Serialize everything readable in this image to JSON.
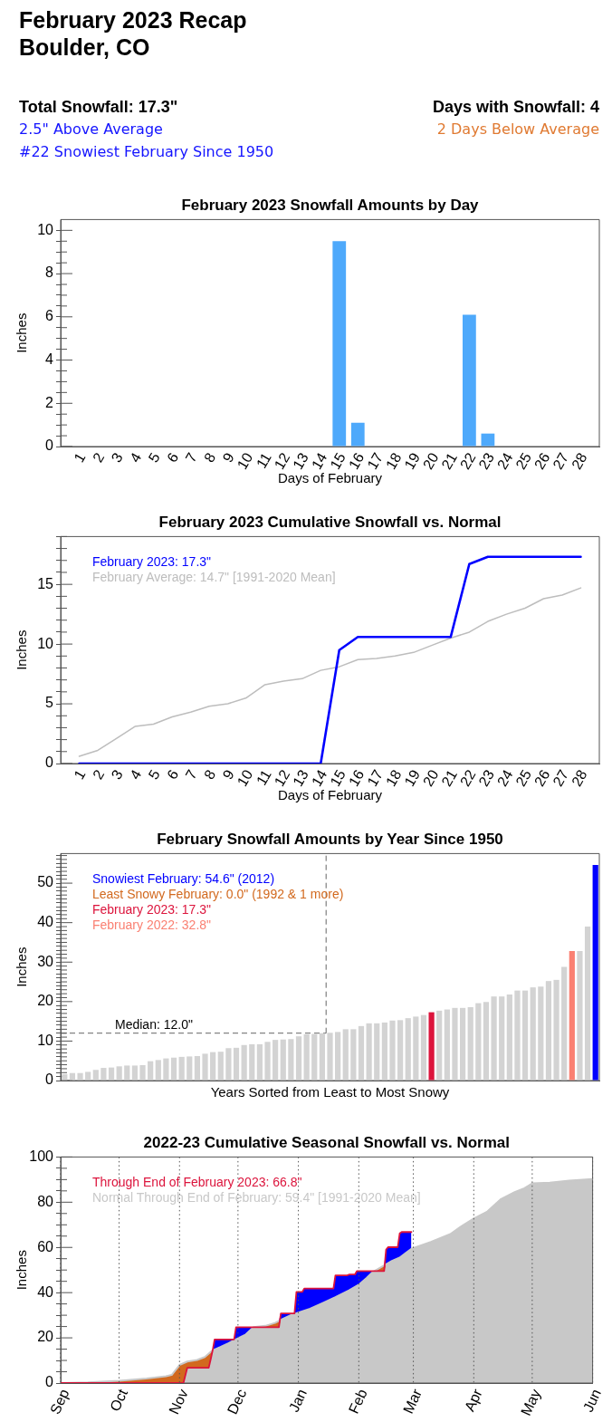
{
  "chart_data": [
    {
      "type": "other",
      "title": "February 2023 Recap",
      "subtitle": "Boulder, CO",
      "annotations": [
        "Total Snowfall: 17.3\"",
        "2.5\" Above Average",
        "#22 Snowiest February Since 1950",
        "Days with Snowfall: 4",
        "2 Days Below Average"
      ]
    },
    {
      "type": "bar",
      "title": "February 2023 Snowfall Amounts by Day",
      "xlabel": "Days of February",
      "ylabel": "Inches",
      "x": [
        1,
        2,
        3,
        4,
        5,
        6,
        7,
        8,
        9,
        10,
        11,
        12,
        13,
        14,
        15,
        16,
        17,
        18,
        19,
        20,
        21,
        22,
        23,
        24,
        25,
        26,
        27,
        28
      ],
      "values": [
        0,
        0,
        0,
        0,
        0,
        0,
        0,
        0,
        0,
        0,
        0,
        0,
        0,
        0,
        9.5,
        1.1,
        0,
        0,
        0,
        0,
        0,
        6.1,
        0.6,
        0,
        0,
        0,
        0,
        0
      ],
      "color": "#4ea9fb",
      "xlim": [
        0,
        29
      ],
      "xticks": [
        1,
        2,
        3,
        4,
        5,
        6,
        7,
        8,
        9,
        10,
        11,
        12,
        13,
        14,
        15,
        16,
        17,
        18,
        19,
        20,
        21,
        22,
        23,
        24,
        25,
        26,
        27,
        28
      ],
      "ylim": [
        0,
        10.5
      ],
      "yticks": [
        0,
        {
          "value": 0.5,
          "label": null
        },
        {
          "value": 1,
          "label": null
        },
        {
          "value": 1.5,
          "label": null
        },
        2,
        {
          "value": 2.5,
          "label": null
        },
        {
          "value": 3,
          "label": null
        },
        {
          "value": 3.5,
          "label": null
        },
        4,
        {
          "value": 4.5,
          "label": null
        },
        {
          "value": 5,
          "label": null
        },
        {
          "value": 5.5,
          "label": null
        },
        6,
        {
          "value": 6.5,
          "label": null
        },
        {
          "value": 7,
          "label": null
        },
        {
          "value": 7.5,
          "label": null
        },
        8,
        {
          "value": 8.5,
          "label": null
        },
        {
          "value": 9,
          "label": null
        },
        {
          "value": 9.5,
          "label": null
        },
        10
      ]
    },
    {
      "type": "line",
      "title": "February 2023 Cumulative Snowfall vs. Normal",
      "xlabel": "Days of February",
      "ylabel": "Inches",
      "x": [
        1,
        2,
        3,
        4,
        5,
        6,
        7,
        8,
        9,
        10,
        11,
        12,
        13,
        14,
        15,
        16,
        17,
        18,
        19,
        20,
        21,
        22,
        23,
        24,
        25,
        26,
        27,
        28
      ],
      "series": [
        {
          "name": "February 2023: 17.3\"",
          "color": "#0000ff",
          "values": [
            0,
            0,
            0,
            0,
            0,
            0,
            0,
            0,
            0,
            0,
            0,
            0,
            0,
            0,
            9.5,
            10.6,
            10.6,
            10.6,
            10.6,
            10.6,
            10.6,
            16.7,
            17.3,
            17.3,
            17.3,
            17.3,
            17.3,
            17.3
          ]
        },
        {
          "name": "February Average: 14.7\" [1991-2020 Mean]",
          "color": "#bdbdbd",
          "values": [
            0.6,
            1.1,
            2.1,
            3.1,
            3.3,
            3.9,
            4.3,
            4.8,
            5.0,
            5.5,
            6.6,
            6.9,
            7.1,
            7.8,
            8.1,
            8.7,
            8.8,
            9.0,
            9.3,
            9.9,
            10.5,
            11.0,
            11.9,
            12.5,
            13.0,
            13.8,
            14.1,
            14.7
          ]
        }
      ],
      "xlim": [
        0,
        29
      ],
      "xticks": [
        1,
        2,
        3,
        4,
        5,
        6,
        7,
        8,
        9,
        10,
        11,
        12,
        13,
        14,
        15,
        16,
        17,
        18,
        19,
        20,
        21,
        22,
        23,
        24,
        25,
        26,
        27,
        28
      ],
      "ylim": [
        0,
        19
      ],
      "yticks": [
        0,
        {
          "value": 1,
          "label": null
        },
        {
          "value": 2,
          "label": null
        },
        {
          "value": 3,
          "label": null
        },
        {
          "value": 4,
          "label": null
        },
        5,
        {
          "value": 6,
          "label": null
        },
        {
          "value": 7,
          "label": null
        },
        {
          "value": 8,
          "label": null
        },
        {
          "value": 9,
          "label": null
        },
        10,
        {
          "value": 11,
          "label": null
        },
        {
          "value": 12,
          "label": null
        },
        {
          "value": 13,
          "label": null
        },
        {
          "value": 14,
          "label": null
        },
        15,
        {
          "value": 16,
          "label": null
        },
        {
          "value": 17,
          "label": null
        },
        {
          "value": 18,
          "label": null
        },
        {
          "value": 19,
          "label": null
        }
      ],
      "legend": "top left"
    },
    {
      "type": "bar",
      "title": "February Snowfall Amounts by Year Since 1950",
      "xlabel": "Years Sorted from Least to Most Snowy",
      "ylabel": "Inches",
      "categories": [
        null,
        null,
        null,
        null,
        null,
        null,
        null,
        null,
        null,
        null,
        null,
        null,
        null,
        null,
        null,
        null,
        null,
        null,
        null,
        null,
        null,
        null,
        null,
        null,
        null,
        null,
        null,
        null,
        null,
        null,
        null,
        null,
        null,
        null,
        null,
        null,
        null,
        null,
        null,
        null,
        null,
        null,
        null,
        null,
        null,
        null,
        null,
        null,
        null,
        null,
        null,
        null,
        null,
        null,
        null,
        null,
        null,
        null,
        null,
        null,
        null,
        null,
        null,
        null,
        null,
        null,
        null,
        null,
        null
      ],
      "stacked": true,
      "series": [
        {
          "color": "#d3d3d3",
          "values": [
            1.6,
            1.9,
            1.9,
            2.2,
            2.7,
            3.2,
            3.3,
            3.6,
            3.8,
            3.8,
            3.9,
            4.9,
            5.2,
            5.6,
            5.8,
            6.0,
            6.1,
            6.2,
            6.8,
            7.2,
            7.3,
            8.2,
            8.3,
            9.0,
            9.2,
            9.2,
            9.8,
            10.3,
            10.4,
            10.5,
            11.2,
            11.7,
            11.8,
            12.0,
            12.1,
            12.3,
            13.0,
            13.0,
            13.8,
            14.5,
            14.5,
            14.7,
            15.2,
            15.3,
            15.8,
            16.2,
            16.6,
            null,
            17.7,
            18.0,
            18.4,
            18.4,
            18.6,
            19.6,
            19.9,
            21.3,
            21.3,
            21.8,
            22.8,
            22.8,
            23.6,
            23.8,
            25.2,
            25.5,
            28.8,
            null,
            32.8,
            39.0,
            null
          ]
        },
        {
          "name": "Snowiest February: 54.6\" (2012)",
          "color": "#0000ff",
          "values": [
            null,
            null,
            null,
            null,
            null,
            null,
            null,
            null,
            null,
            null,
            null,
            null,
            null,
            null,
            null,
            null,
            null,
            null,
            null,
            null,
            null,
            null,
            null,
            null,
            null,
            null,
            null,
            null,
            null,
            null,
            null,
            null,
            null,
            null,
            null,
            null,
            null,
            null,
            null,
            null,
            null,
            null,
            null,
            null,
            null,
            null,
            null,
            null,
            null,
            null,
            null,
            null,
            null,
            null,
            null,
            null,
            null,
            null,
            null,
            null,
            null,
            null,
            null,
            null,
            null,
            null,
            null,
            null,
            54.6
          ]
        },
        {
          "name": "Least Snowy February: 0.0\" (1992 & 1 more)",
          "color": "#d2691e",
          "values": [
            null,
            null,
            null,
            null,
            null,
            null,
            null,
            null,
            null,
            null,
            null,
            null,
            null,
            null,
            null,
            null,
            null,
            null,
            null,
            null,
            null,
            null,
            null,
            null,
            null,
            null,
            null,
            null,
            null,
            null,
            null,
            null,
            null,
            null,
            null,
            null,
            null,
            null,
            null,
            null,
            null,
            null,
            null,
            null,
            null,
            null,
            null,
            null,
            null,
            null,
            null,
            null,
            null,
            null,
            null,
            null,
            null,
            null,
            null,
            null,
            null,
            null,
            null,
            null,
            null,
            null,
            null,
            null,
            null
          ]
        },
        {
          "name": "February 2023: 17.3\"",
          "color": "#dc143c",
          "values": [
            null,
            null,
            null,
            null,
            null,
            null,
            null,
            null,
            null,
            null,
            null,
            null,
            null,
            null,
            null,
            null,
            null,
            null,
            null,
            null,
            null,
            null,
            null,
            null,
            null,
            null,
            null,
            null,
            null,
            null,
            null,
            null,
            null,
            null,
            null,
            null,
            null,
            null,
            null,
            null,
            null,
            null,
            null,
            null,
            null,
            null,
            null,
            17.3,
            null,
            null,
            null,
            null,
            null,
            null,
            null,
            null,
            null,
            null,
            null,
            null,
            null,
            null,
            null,
            null,
            null,
            null,
            null,
            null,
            null
          ]
        },
        {
          "name": "February 2022: 32.8\"",
          "color": "#fa8072",
          "values": [
            null,
            null,
            null,
            null,
            null,
            null,
            null,
            null,
            null,
            null,
            null,
            null,
            null,
            null,
            null,
            null,
            null,
            null,
            null,
            null,
            null,
            null,
            null,
            null,
            null,
            null,
            null,
            null,
            null,
            null,
            null,
            null,
            null,
            null,
            null,
            null,
            null,
            null,
            null,
            null,
            null,
            null,
            null,
            null,
            null,
            null,
            null,
            null,
            null,
            null,
            null,
            null,
            null,
            null,
            null,
            null,
            null,
            null,
            null,
            null,
            null,
            null,
            null,
            null,
            null,
            32.8,
            null,
            null,
            null
          ]
        }
      ],
      "ylim": [
        0,
        57.5
      ],
      "yticks": [
        0,
        {
          "value": 1,
          "label": null
        },
        {
          "value": 2,
          "label": null
        },
        {
          "value": 3,
          "label": null
        },
        {
          "value": 4,
          "label": null
        },
        {
          "value": 5,
          "label": null
        },
        {
          "value": 6,
          "label": null
        },
        {
          "value": 7,
          "label": null
        },
        {
          "value": 8,
          "label": null
        },
        {
          "value": 9,
          "label": null
        },
        10,
        {
          "value": 11,
          "label": null
        },
        {
          "value": 12,
          "label": null
        },
        {
          "value": 13,
          "label": null
        },
        {
          "value": 14,
          "label": null
        },
        {
          "value": 15,
          "label": null
        },
        {
          "value": 16,
          "label": null
        },
        {
          "value": 17,
          "label": null
        },
        {
          "value": 18,
          "label": null
        },
        {
          "value": 19,
          "label": null
        },
        20,
        {
          "value": 21,
          "label": null
        },
        {
          "value": 22,
          "label": null
        },
        {
          "value": 23,
          "label": null
        },
        {
          "value": 24,
          "label": null
        },
        {
          "value": 25,
          "label": null
        },
        {
          "value": 26,
          "label": null
        },
        {
          "value": 27,
          "label": null
        },
        {
          "value": 28,
          "label": null
        },
        {
          "value": 29,
          "label": null
        },
        30,
        {
          "value": 31,
          "label": null
        },
        {
          "value": 32,
          "label": null
        },
        {
          "value": 33,
          "label": null
        },
        {
          "value": 34,
          "label": null
        },
        {
          "value": 35,
          "label": null
        },
        {
          "value": 36,
          "label": null
        },
        {
          "value": 37,
          "label": null
        },
        {
          "value": 38,
          "label": null
        },
        {
          "value": 39,
          "label": null
        },
        40,
        {
          "value": 41,
          "label": null
        },
        {
          "value": 42,
          "label": null
        },
        {
          "value": 43,
          "label": null
        },
        {
          "value": 44,
          "label": null
        },
        {
          "value": 45,
          "label": null
        },
        {
          "value": 46,
          "label": null
        },
        {
          "value": 47,
          "label": null
        },
        {
          "value": 48,
          "label": null
        },
        {
          "value": 49,
          "label": null
        },
        50,
        {
          "value": 51,
          "label": null
        },
        {
          "value": 52,
          "label": null
        },
        {
          "value": 53,
          "label": null
        },
        {
          "value": 54,
          "label": null
        },
        {
          "value": 55,
          "label": null
        },
        {
          "value": 56,
          "label": null
        },
        {
          "value": 57,
          "label": null
        }
      ],
      "tick_labels": "y",
      "legend": "top left",
      "ref_lines": [
        {
          "axis": "y",
          "value": 12,
          "label": "Median: 12.0\"",
          "line_style": "dashed",
          "color": "#666666"
        }
      ]
    },
    {
      "type": "area",
      "title": "2022-23 Cumulative Seasonal Snowfall vs. Normal",
      "ylabel": "Inches",
      "series": [
        {
          "type": "line",
          "name": "Through End of February 2023: 66.8\"",
          "color": "#dc143c",
          "x": [
            "2022-09-01",
            "2022-11-03",
            "2022-11-05",
            "2022-11-16",
            "2022-11-17",
            "2022-11-18",
            "2022-11-19",
            "2022-11-29",
            "2022-11-30",
            "2022-12-22",
            "2022-12-23",
            "2022-12-30",
            "2022-12-31",
            "2023-01-03",
            "2023-01-04",
            "2023-01-19",
            "2023-01-20",
            "2023-01-26",
            "2023-01-27",
            "2023-01-30",
            "2023-01-31",
            "2023-02-14",
            "2023-02-15",
            "2023-02-16",
            "2023-02-21",
            "2023-02-22",
            "2023-02-23",
            "2023-02-28"
          ],
          "values": [
            0,
            0,
            6.8,
            6.8,
            10.5,
            14.5,
            19.3,
            19.3,
            24.7,
            24.7,
            30.8,
            30.8,
            40.3,
            40.3,
            41.8,
            41.8,
            47.6,
            47.6,
            48.0,
            48.0,
            49.5,
            49.5,
            59.0,
            60.1,
            60.1,
            66.2,
            66.8,
            66.8
          ]
        },
        {
          "name": "Normal Through End of February: 59.4\" [1991-2020 Mean]",
          "color": "#c8c8c8",
          "x": [
            "2022-09-01",
            "2022-09-15",
            "2022-10-01",
            "2022-10-15",
            "2022-10-25",
            "2022-10-28",
            "2022-11-01",
            "2022-11-05",
            "2022-11-10",
            "2022-11-14",
            "2022-11-16",
            "2022-11-18",
            "2022-11-22",
            "2022-11-26",
            "2022-12-01",
            "2022-12-05",
            "2022-12-09",
            "2022-12-15",
            "2022-12-20",
            "2022-12-24",
            "2022-12-28",
            "2023-01-01",
            "2023-01-07",
            "2023-01-14",
            "2023-01-20",
            "2023-01-27",
            "2023-02-01",
            "2023-02-05",
            "2023-02-08",
            "2023-02-12",
            "2023-02-15",
            "2023-02-18",
            "2023-02-22",
            "2023-02-25",
            "2023-02-28",
            "2023-03-10",
            "2023-03-20",
            "2023-03-25",
            "2023-04-01",
            "2023-04-08",
            "2023-04-15",
            "2023-04-22",
            "2023-04-27",
            "2023-05-01",
            "2023-05-10",
            "2023-05-20",
            "2023-06-01"
          ],
          "values": [
            0,
            0.3,
            1.0,
            2.0,
            3.0,
            3.6,
            8.0,
            9.5,
            10.2,
            11.5,
            13.0,
            14.5,
            16.0,
            17.6,
            19.8,
            21.5,
            24.7,
            25.3,
            26.6,
            28.4,
            30.0,
            31.2,
            32.9,
            35.6,
            38.0,
            41.0,
            43.5,
            46.5,
            49.0,
            51.0,
            52.5,
            54.0,
            55.5,
            57.5,
            59.4,
            62.4,
            65.9,
            69.0,
            72.8,
            75.9,
            81.4,
            84.5,
            86.2,
            88.3,
            88.6,
            89.5,
            90.2
          ]
        },
        {
          "type": "line",
          "color": "#0000ff",
          "x": [
            "2022-11-18",
            "2022-11-19",
            "2022-11-22",
            "2022-11-26",
            "2022-11-29",
            "2022-11-30",
            "2022-12-01",
            "2022-12-05",
            "2022-12-09",
            "2022-12-15",
            "2022-12-22",
            "2022-12-23",
            "2022-12-24",
            "2022-12-28",
            "2022-12-30",
            "2022-12-31",
            "2023-01-01",
            "2023-01-03",
            "2023-01-04",
            "2023-01-07",
            "2023-01-14",
            "2023-01-19",
            "2023-01-20",
            "2023-01-26",
            "2023-01-27",
            "2023-01-30",
            "2023-01-31",
            "2023-02-01",
            "2023-02-05",
            "2023-02-08",
            "2023-02-09",
            "2023-02-12",
            "2023-02-14",
            "2023-02-15",
            "2023-02-16",
            "2023-02-18",
            "2023-02-21",
            "2023-02-22",
            "2023-02-23",
            "2023-02-25",
            "2023-02-28"
          ],
          "values": [
            null,
            null,
            null,
            null,
            null,
            null,
            null,
            null,
            null,
            null,
            null,
            null,
            null,
            null,
            null,
            null,
            null,
            null,
            null,
            null,
            null,
            null,
            null,
            null,
            null,
            null,
            null,
            null,
            null,
            null,
            null,
            null,
            null,
            null,
            null,
            null,
            null,
            null,
            null,
            null,
            null
          ],
          "lower": [
            14.5,
            14.9,
            16.0,
            17.6,
            18.9,
            19.4,
            19.8,
            21.5,
            24.7,
            null,
            27.5,
            28.0,
            28.4,
            30.0,
            30.6,
            30.9,
            31.2,
            31.8,
            32.1,
            32.9,
            35.6,
            37.6,
            38.0,
            40.6,
            41.0,
            42.5,
            43.0,
            43.5,
            46.5,
            49.0,
            49.5,
            null,
            52.0,
            52.5,
            53.0,
            54.0,
            55.1,
            55.5,
            56.2,
            57.5,
            59.4
          ],
          "upper": [
            14.5,
            19.3,
            19.3,
            19.3,
            19.3,
            24.7,
            24.7,
            24.7,
            24.7,
            null,
            27.5,
            30.8,
            30.8,
            30.8,
            30.8,
            40.3,
            40.3,
            40.3,
            41.8,
            41.8,
            41.8,
            41.8,
            47.6,
            47.6,
            48.0,
            48.0,
            49.5,
            49.5,
            49.5,
            49.5,
            49.5,
            null,
            52.0,
            59.0,
            60.1,
            60.1,
            60.1,
            66.2,
            66.8,
            66.8,
            66.8
          ]
        },
        {
          "type": "line",
          "color": "#d2691e",
          "x": [
            "2022-09-01",
            "2022-09-15",
            "2022-10-01",
            "2022-10-15",
            "2022-10-25",
            "2022-10-28",
            "2022-11-01",
            "2022-11-03",
            "2022-11-05",
            "2022-11-10",
            "2022-11-14",
            "2022-11-16",
            "2022-11-17",
            "2022-11-18",
            "2022-11-19",
            "2022-12-09",
            "2022-12-15",
            "2022-12-20",
            "2022-12-22",
            "2022-12-23",
            "2022-12-24",
            "2023-02-09",
            "2023-02-12",
            "2023-02-14",
            "2023-02-15"
          ],
          "values": [
            null,
            null,
            null,
            null,
            null,
            null,
            null,
            null,
            null,
            null,
            null,
            null,
            null,
            null,
            null,
            null,
            null,
            null,
            null,
            null,
            null,
            null,
            null,
            null,
            null
          ],
          "lower": [
            0,
            0,
            0,
            0,
            0,
            0,
            0,
            0,
            6.8,
            6.8,
            6.8,
            6.8,
            10.5,
            14.5,
            null,
            24.7,
            24.7,
            24.7,
            24.7,
            28.0,
            null,
            49.5,
            49.5,
            49.5,
            52.5
          ],
          "upper": [
            0,
            0.3,
            1.0,
            2.0,
            3.0,
            3.6,
            8.0,
            8.8,
            9.5,
            10.2,
            11.5,
            13.0,
            13.8,
            14.5,
            null,
            24.7,
            25.3,
            26.6,
            27.5,
            28.0,
            null,
            49.5,
            51.0,
            52.0,
            52.5
          ]
        }
      ],
      "xlim": [
        "2022-09-01",
        "2023-06-01"
      ],
      "xticks": [
        {
          "value": "2022-09-01",
          "label": "Sep"
        },
        {
          "value": "2022-10-01",
          "label": "Oct"
        },
        {
          "value": "2022-11-01",
          "label": "Nov"
        },
        {
          "value": "2022-12-01",
          "label": "Dec"
        },
        {
          "value": "2023-01-01",
          "label": "Jan"
        },
        {
          "value": "2023-02-01",
          "label": "Feb"
        },
        {
          "value": "2023-03-01",
          "label": "Mar"
        },
        {
          "value": "2023-04-01",
          "label": "Apr"
        },
        {
          "value": "2023-05-01",
          "label": "May"
        },
        {
          "value": "2023-06-01",
          "label": "Jun"
        }
      ],
      "ylim": [
        0,
        100
      ],
      "yticks": [
        0,
        {
          "value": 5,
          "label": null
        },
        {
          "value": 10,
          "label": null
        },
        {
          "value": 15,
          "label": null
        },
        20,
        {
          "value": 25,
          "label": null
        },
        {
          "value": 30,
          "label": null
        },
        {
          "value": 35,
          "label": null
        },
        40,
        {
          "value": 45,
          "label": null
        },
        {
          "value": 50,
          "label": null
        },
        {
          "value": 55,
          "label": null
        },
        60,
        {
          "value": 65,
          "label": null
        },
        {
          "value": 70,
          "label": null
        },
        {
          "value": 75,
          "label": null
        },
        80,
        {
          "value": 85,
          "label": null
        },
        {
          "value": 90,
          "label": null
        },
        {
          "value": 95,
          "label": null
        },
        100
      ],
      "grid": "x",
      "legend": "top left"
    }
  ]
}
